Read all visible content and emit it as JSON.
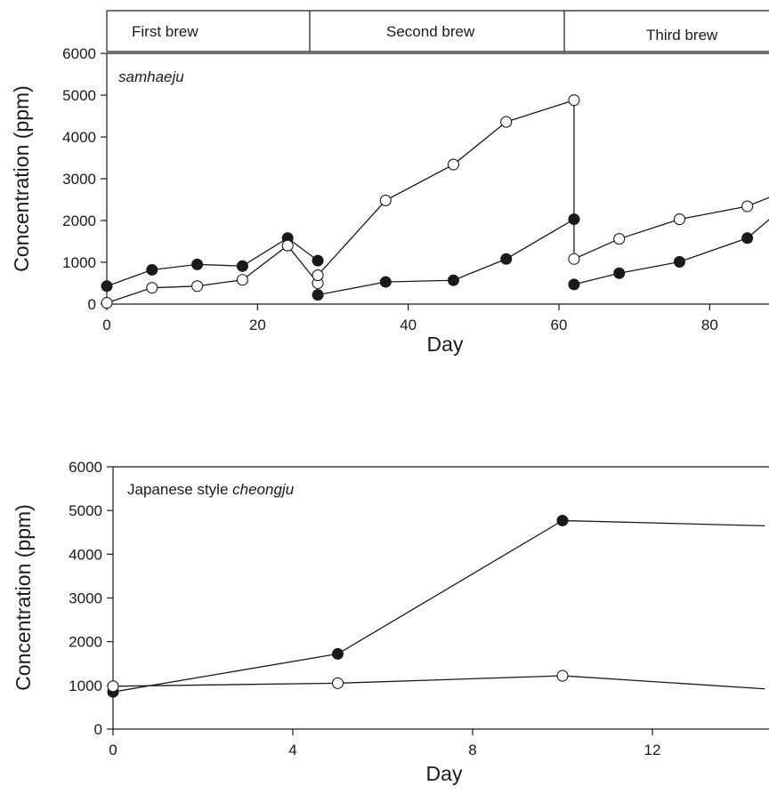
{
  "chart_data": [
    {
      "type": "line",
      "annotation_plain": "",
      "annotation_italic": "samhaeju",
      "xlabel": "Day",
      "ylabel": "Concentration (ppm)",
      "xlim": [
        0,
        92
      ],
      "ylim": [
        0,
        6000
      ],
      "xticks": [
        0,
        20,
        40,
        60,
        80
      ],
      "yticks": [
        0,
        1000,
        2000,
        3000,
        4000,
        5000,
        6000
      ],
      "brew_periods": [
        {
          "label": "First brew",
          "start": 0,
          "end": 28
        },
        {
          "label": "Second brew",
          "start": 28,
          "end": 63
        },
        {
          "label": "Third brew",
          "start": 63,
          "end": 92
        }
      ],
      "series": [
        {
          "marker": "filled",
          "segments": [
            [
              [
                0,
                430
              ],
              [
                6,
                820
              ],
              [
                12,
                950
              ],
              [
                18,
                910
              ],
              [
                24,
                1580
              ],
              [
                28,
                1040
              ]
            ],
            [
              [
                28,
                220
              ],
              [
                37,
                530
              ],
              [
                46,
                570
              ],
              [
                53,
                1080
              ],
              [
                62,
                2030
              ]
            ],
            [
              [
                62,
                470
              ],
              [
                68,
                740
              ],
              [
                76,
                1010
              ],
              [
                85,
                1580
              ],
              [
                92,
                2650
              ]
            ]
          ]
        },
        {
          "marker": "open",
          "segments": [
            [
              [
                0,
                30
              ],
              [
                6,
                390
              ],
              [
                12,
                430
              ],
              [
                18,
                580
              ],
              [
                24,
                1400
              ],
              [
                28,
                500
              ]
            ],
            [
              [
                28,
                690
              ],
              [
                37,
                2480
              ],
              [
                46,
                3340
              ],
              [
                53,
                4360
              ],
              [
                62,
                4880
              ],
              [
                62,
                1080
              ]
            ],
            [
              [
                62,
                1080
              ],
              [
                68,
                1560
              ],
              [
                76,
                2030
              ],
              [
                85,
                2340
              ],
              [
                92,
                2850
              ]
            ]
          ]
        }
      ]
    },
    {
      "type": "line",
      "annotation_plain": "Japanese style ",
      "annotation_italic": "cheongju",
      "xlabel": "Day",
      "ylabel": "Concentration (ppm)",
      "xlim": [
        0,
        14.5
      ],
      "ylim": [
        0,
        6000
      ],
      "xticks": [
        0,
        4,
        8,
        12
      ],
      "yticks": [
        0,
        1000,
        2000,
        3000,
        4000,
        5000,
        6000
      ],
      "series": [
        {
          "marker": "filled",
          "segments": [
            [
              [
                0,
                850
              ],
              [
                5,
                1720
              ],
              [
                10,
                4770
              ],
              [
                14.5,
                4650
              ]
            ]
          ]
        },
        {
          "marker": "open",
          "segments": [
            [
              [
                0,
                980
              ],
              [
                5,
                1050
              ],
              [
                10,
                1220
              ],
              [
                14.5,
                920
              ]
            ]
          ]
        }
      ]
    }
  ]
}
